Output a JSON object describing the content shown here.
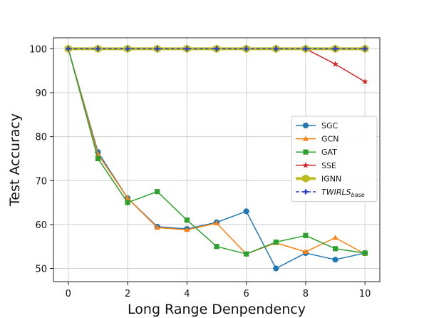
{
  "chart_data": {
    "type": "line",
    "title": "",
    "xlabel": "Long Range Denpendency",
    "ylabel": "Test Accuracy",
    "xlim": [
      -0.5,
      10.5
    ],
    "ylim": [
      47,
      102.5
    ],
    "xticks": [
      0,
      2,
      4,
      6,
      8,
      10
    ],
    "yticks": [
      50,
      60,
      70,
      80,
      90,
      100
    ],
    "grid": true,
    "legend_position": "right",
    "x": [
      0,
      1,
      2,
      3,
      4,
      5,
      6,
      7,
      8,
      9,
      10
    ],
    "series": [
      {
        "name": "SGC",
        "legend_main": "SGC",
        "legend_sub": "",
        "color": "#1f77b4",
        "marker": "circle",
        "style": "solid",
        "width": 1.5,
        "values": [
          100,
          76.5,
          66,
          59.5,
          59,
          60.5,
          63,
          50,
          53.5,
          52,
          53.5
        ]
      },
      {
        "name": "GCN",
        "legend_main": "GCN",
        "legend_sub": "",
        "color": "#ff7f0e",
        "marker": "triangle",
        "style": "solid",
        "width": 1.5,
        "values": [
          100,
          76,
          66,
          59.3,
          58.8,
          60.3,
          53.3,
          55.8,
          53.8,
          57,
          53.3
        ]
      },
      {
        "name": "GAT",
        "legend_main": "GAT",
        "legend_sub": "",
        "color": "#2ca02c",
        "marker": "square",
        "style": "solid",
        "width": 1.5,
        "values": [
          100,
          75,
          65,
          67.5,
          61,
          55,
          53.3,
          56,
          57.5,
          54.5,
          53.5
        ]
      },
      {
        "name": "SSE",
        "legend_main": "SSE",
        "legend_sub": "",
        "color": "#d62728",
        "marker": "star",
        "style": "solid",
        "width": 1.5,
        "values": [
          100,
          100,
          100,
          100,
          100,
          100,
          100,
          100,
          100,
          96.5,
          92.5
        ]
      },
      {
        "name": "IGNN",
        "legend_main": "IGNN",
        "legend_sub": "",
        "color": "#bcbd22",
        "marker": "hexagon",
        "style": "solid",
        "width": 4,
        "values": [
          100,
          100,
          100,
          100,
          100,
          100,
          100,
          100,
          100,
          100,
          100
        ]
      },
      {
        "name": "TWIRLSbase",
        "legend_main": "TWIRLS",
        "legend_sub": "base",
        "color": "#2c3fc8",
        "marker": "plus",
        "style": "dashed",
        "width": 1.5,
        "values": [
          100,
          100,
          100,
          100,
          100,
          100,
          100,
          100,
          100,
          100,
          100
        ]
      }
    ]
  }
}
